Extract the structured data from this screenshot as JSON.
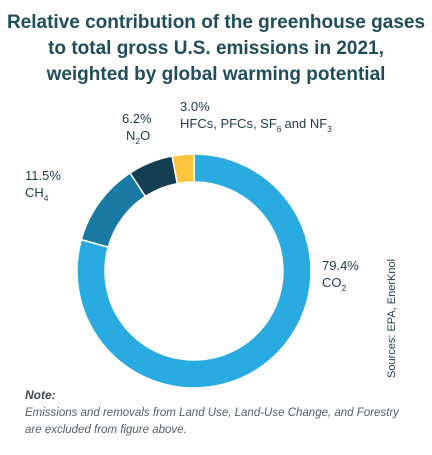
{
  "title_lines": [
    "Relative contribution of the greenhouse gases",
    "to total gross U.S. emissions in 2021,",
    "weighted by global warming potential"
  ],
  "chart_data": {
    "type": "pie",
    "style": "donut",
    "title": "Relative contribution of the greenhouse gases to total gross U.S. emissions in 2021, weighted by global warming potential",
    "slices": [
      {
        "name": "CO2",
        "value": 79.4,
        "value_label": "79.4%",
        "color": "#29abe2"
      },
      {
        "name": "CH4",
        "value": 11.5,
        "value_label": "11.5%",
        "color": "#1a7aa3"
      },
      {
        "name": "N2O",
        "value": 6.2,
        "value_label": "6.2%",
        "color": "#143f52"
      },
      {
        "name": "HFCs, PFCs, SF6 and NF3",
        "value": 3.0,
        "value_label": "3.0%",
        "color": "#fcc33c"
      }
    ]
  },
  "labels": {
    "co2": {
      "value": "79.4%",
      "base": "CO",
      "sub": "2"
    },
    "ch4": {
      "value": "11.5%",
      "base": "CH",
      "sub": "4"
    },
    "n2o": {
      "value": "6.2%",
      "base": "N",
      "sub": "2",
      "tail": "O"
    },
    "hfc": {
      "value": "3.0%",
      "pre": "HFCs, PFCs, SF",
      "sub": "6",
      "post": "and NF",
      "sub2": "3"
    }
  },
  "source": "Sources: EPA, EnerKnol",
  "note": {
    "heading": "Note:",
    "text": "Emissions and removals from Land Use, Land-Use Change, and Forestry are excluded from figure above."
  }
}
